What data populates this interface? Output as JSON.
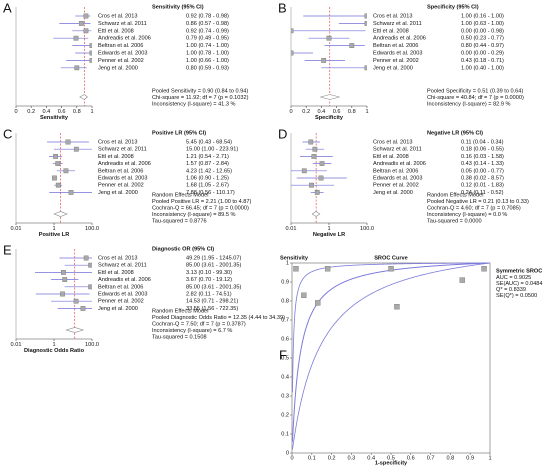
{
  "chart_data": [
    {
      "type": "forest",
      "panel": "A",
      "title": "Sensitivity (95% CI)",
      "xlabel": "Sensitivity",
      "log": false,
      "color": "#7070d8",
      "categories": [
        "Cros et al. 2013",
        "Schwarz et al. 2011",
        "Ettl et al. 2008",
        "Andreadis et al. 2006",
        "Beltran et al. 2006",
        "Edwards et al. 2003",
        "Penner et al. 2002",
        "Jeng et al. 2000"
      ],
      "values": [
        0.92,
        0.86,
        0.92,
        0.79,
        1.0,
        1.0,
        1.0,
        0.8
      ],
      "lower": [
        0.78,
        0.57,
        0.74,
        0.49,
        0.74,
        0.78,
        0.66,
        0.59
      ],
      "upper": [
        0.98,
        0.98,
        0.99,
        0.95,
        1.0,
        1.0,
        1.0,
        0.93
      ],
      "value_labels": [
        "0.92  (0.78 - 0.98)",
        "0.86  (0.57 - 0.98)",
        "0.92  (0.74 - 0.99)",
        "0.79  (0.49 - 0.95)",
        "1.00  (0.74 - 1.00)",
        "1.00  (0.78 - 1.00)",
        "1.00  (0.66 - 1.00)",
        "0.80  (0.59 - 0.93)"
      ],
      "pooled": {
        "value": 0.9,
        "lower": 0.84,
        "upper": 0.94,
        "label": "Pooled Sensitivity = 0.90 (0.84 to 0.94)"
      },
      "stats": [
        "Chi-square = 11.92; df = 7 (p = 0.1032)",
        "Inconsistency (I-square) = 41.3 %"
      ],
      "xlim": [
        0,
        1
      ],
      "xticks": [
        0,
        0.2,
        0.4,
        0.6,
        0.8,
        1
      ]
    },
    {
      "type": "forest",
      "panel": "B",
      "title": "Specificity (95% CI)",
      "xlabel": "Specificity",
      "log": false,
      "color": "#7070d8",
      "categories": [
        "Cros et al. 2013",
        "Schwarz et al. 2011",
        "Ettl et al. 2008",
        "Andreadis et al. 2006",
        "Beltran et al. 2006",
        "Edwards et al. 2003",
        "Penner et al. 2002",
        "Jeng et al. 2000"
      ],
      "values": [
        1.0,
        1.0,
        0.0,
        0.5,
        0.8,
        0.0,
        0.43,
        1.0
      ],
      "lower": [
        0.16,
        0.63,
        0.0,
        0.23,
        0.44,
        0.0,
        0.18,
        0.4
      ],
      "upper": [
        1.0,
        1.0,
        0.98,
        0.77,
        0.97,
        0.29,
        0.71,
        1.0
      ],
      "value_labels": [
        "1.00  (0.16 - 1.00)",
        "1.00  (0.63 - 1.00)",
        "0.00  (0.00 - 0.98)",
        "0.50  (0.23 - 0.77)",
        "0.80  (0.44 - 0.97)",
        "0.00  (0.00 - 0.29)",
        "0.43  (0.18 - 0.71)",
        "1.00  (0.40 - 1.00)"
      ],
      "pooled": {
        "value": 0.51,
        "lower": 0.39,
        "upper": 0.64,
        "label": "Pooled Specificity = 0.51 (0.39 to 0.64)"
      },
      "stats": [
        "Chi-square = 40.84; df = 7 (p = 0.0000)",
        "Inconsistency (I-square) = 82.9 %"
      ],
      "xlim": [
        0,
        1
      ],
      "xticks": [
        0,
        0.2,
        0.4,
        0.6,
        0.8,
        1
      ]
    },
    {
      "type": "forest",
      "panel": "C",
      "title": "Positive LR (95% CI)",
      "xlabel": "Positive LR",
      "log": true,
      "color": "#7070d8",
      "categories": [
        "Cros et al. 2013",
        "Schwarz et al. 2011",
        "Ettl et al. 2008",
        "Andreadis et al. 2006",
        "Beltran et al. 2006",
        "Edwards et al. 2003",
        "Penner et al. 2002",
        "Jeng et al. 2000"
      ],
      "values": [
        5.45,
        15.0,
        1.21,
        1.57,
        4.23,
        1.06,
        1.68,
        7.88
      ],
      "lower": [
        0.43,
        1.0,
        0.54,
        0.87,
        1.42,
        0.9,
        1.05,
        0.56
      ],
      "upper": [
        68.54,
        223.91,
        2.71,
        2.84,
        12.65,
        1.25,
        2.67,
        110.17
      ],
      "value_labels": [
        "5.45  (0.43 - 68.54)",
        "15.00  (1.00 - 223.91)",
        "1.21  (0.54 - 2.71)",
        "1.57  (0.87 - 2.84)",
        "4.23  (1.42 - 12.65)",
        "1.06  (0.90 - 1.25)",
        "1.68  (1.05 - 2.67)",
        "7.88  (0.56 - 110.17)"
      ],
      "model": "Random Effects Model",
      "pooled": {
        "value": 2.21,
        "lower": 1.0,
        "upper": 4.87,
        "label": "Pooled Positive LR = 2.21 (1.00 to 4.87)"
      },
      "stats": [
        "Cochran-Q = 66.45; df = 7 (p = 0.0000)",
        "Inconsistency (I-square) = 89.5 %",
        "Tau-squared = 0.8776"
      ],
      "xlim": [
        0.01,
        100
      ],
      "xticks": [
        0.01,
        1,
        {
          "value": 100,
          "label": "100.0"
        }
      ]
    },
    {
      "type": "forest",
      "panel": "D",
      "title": "Negative LR (95% CI)",
      "xlabel": "Negative LR",
      "log": true,
      "color": "#7070d8",
      "categories": [
        "Cros et al. 2013",
        "Schwarz et al. 2011",
        "Ettl et al. 2008",
        "Andreadis et al. 2006",
        "Beltran et al. 2006",
        "Edwards et al. 2003",
        "Penner et al. 2002",
        "Jeng et al. 2000"
      ],
      "values": [
        0.11,
        0.18,
        0.16,
        0.43,
        0.05,
        0.38,
        0.12,
        0.24
      ],
      "lower": [
        0.04,
        0.06,
        0.03,
        0.14,
        0.0,
        0.02,
        0.01,
        0.11
      ],
      "upper": [
        0.34,
        0.55,
        1.58,
        1.33,
        0.77,
        8.57,
        1.83,
        0.52
      ],
      "value_labels": [
        "0.11  (0.04 - 0.34)",
        "0.18  (0.06 - 0.55)",
        "0.16  (0.03 - 1.58)",
        "0.43  (0.14 - 1.33)",
        "0.05  (0.00 - 0.77)",
        "0.38  (0.02 - 8.57)",
        "0.12  (0.01 - 1.83)",
        "0.24  (0.11 - 0.52)"
      ],
      "model": "Random Effects Model",
      "pooled": {
        "value": 0.21,
        "lower": 0.13,
        "upper": 0.33,
        "label": "Pooled Negative LR = 0.21 (0.13 to 0.33)"
      },
      "stats": [
        "Cochran-Q = 4.60; df = 7 (p = 0.7085)",
        "Inconsistency (I-square) = 0.0 %",
        "Tau-squared = 0.0000"
      ],
      "xlim": [
        0.01,
        100
      ],
      "xticks": [
        0.01,
        1,
        {
          "value": 100,
          "label": "100.0"
        }
      ]
    },
    {
      "type": "forest",
      "panel": "E",
      "title": "Diagnostic OR (95% CI)",
      "xlabel": "Diagnostic Odds Ratio",
      "log": true,
      "color": "#7070d8",
      "categories": [
        "Cros et al. 2013",
        "Schwarz et al. 2011",
        "Ettl et al. 2008",
        "Andreadis et al. 2006",
        "Beltran et al. 2006",
        "Edwards et al. 2003",
        "Penner et al. 2002",
        "Jeng et al. 2000"
      ],
      "values": [
        49.29,
        85.0,
        3.13,
        3.67,
        85.0,
        2.82,
        14.53,
        33.55
      ],
      "lower": [
        1.95,
        3.61,
        0.1,
        0.7,
        3.61,
        0.11,
        0.71,
        1.56
      ],
      "upper": [
        1245.07,
        2001.35,
        99.3,
        19.12,
        2001.35,
        74.51,
        298.21,
        722.35
      ],
      "value_labels": [
        "49.29  (1.95 - 1245.07)",
        "85.00  (3.61 - 2001.35)",
        "3.13  (0.10 - 99.30)",
        "3.67  (0.70 - 19.12)",
        "85.00  (3.61 - 2001.35)",
        "2.82  (0.11 - 74.51)",
        "14.53  (0.71 - 298.21)",
        "33.55  (1.56 - 722.35)"
      ],
      "model": "Random Effects Model",
      "pooled": {
        "value": 12.35,
        "lower": 4.44,
        "upper": 34.39,
        "label": "Pooled Diagnostic Odds Ratio = 12.35 (4.44 to 34.39)"
      },
      "stats": [
        "Cochran-Q = 7.50; df = 7 (p = 0.3787)",
        "Inconsistency (I-square) = 6.7 %",
        "Tau-squared = 0.1508"
      ],
      "xlim": [
        0.01,
        100
      ],
      "xticks": [
        0.01,
        1,
        {
          "value": 100,
          "label": "100.0"
        }
      ]
    },
    {
      "type": "sroc",
      "panel": "F",
      "title": "SROC Curve",
      "xlabel": "1-specificity",
      "ylabel": "Sensitivity",
      "color": "#7b7bdc",
      "x": [
        0.02,
        0.06,
        0.13,
        0.18,
        0.5,
        0.53,
        0.86,
        0.97
      ],
      "values": [
        0.97,
        0.83,
        0.79,
        0.97,
        0.97,
        0.77,
        0.91,
        0.97
      ],
      "legend_title": "Symmetric SROC",
      "auc": {
        "value": 0.9025,
        "label": "AUC = 0.9025"
      },
      "se_auc": {
        "value": 0.0484,
        "label": "SE(AUC) = 0.0484"
      },
      "q": {
        "value": 0.8339,
        "label": "Q* = 0.8339"
      },
      "se_q": {
        "value": 0.05,
        "label": "SE(Q*) = 0.0500"
      },
      "xlim": [
        0,
        1
      ],
      "ylim": [
        0,
        1
      ],
      "xticks": [
        0,
        0.1,
        0.2,
        0.3,
        0.4,
        0.5,
        0.6,
        0.7,
        0.8,
        0.9,
        1
      ],
      "yticks": [
        0,
        0.1,
        0.2,
        0.3,
        0.4,
        0.5,
        0.6,
        0.7,
        0.8,
        0.9,
        1
      ]
    }
  ]
}
